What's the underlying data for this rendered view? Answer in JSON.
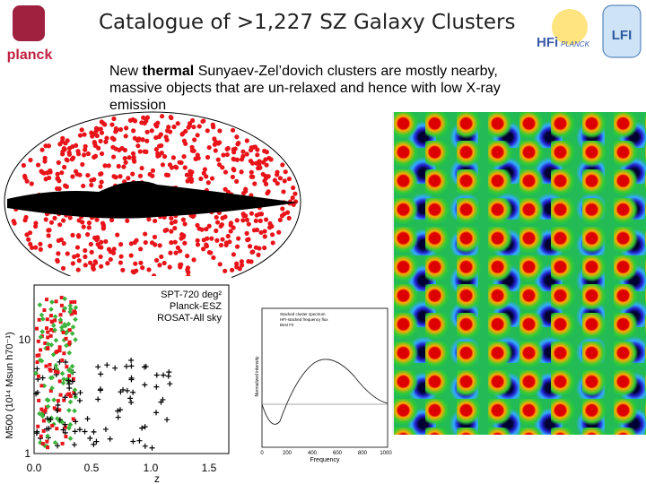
{
  "header": {
    "title": "Catalogue of >1,227 SZ Galaxy Clusters",
    "logo_left": "planck",
    "logo_right_1": "HFi",
    "logo_right_2": "PLANCK",
    "logo_right_3": "LFI"
  },
  "body": {
    "parts": [
      "New ",
      "thermal",
      " Sunyaev-Zel’dovich clusters are mostly nearby, massive objects that are un-relaxed and hence with low X-ray emission"
    ]
  },
  "scatter_figure": {
    "legend": [
      "SPT-720 deg²",
      "Planck-ESZ",
      "ROSAT-All sky"
    ],
    "x_ticks": [
      "0.0",
      "0.5",
      "1.0",
      "1.5"
    ],
    "x_label": "z",
    "y_ticks": [
      "10",
      "1"
    ],
    "y_label": "M500 (10¹⁴ Msun h70⁻¹)"
  },
  "spectrum_figure": {
    "x_ticks": [
      "0",
      "200",
      "400",
      "600",
      "800",
      "1000"
    ],
    "x_label": "Frequency",
    "y_label": "Normalized intensity",
    "legend": [
      "Stacked cluster spectrum",
      "HFI-stacked frequency flux",
      "Best Fit"
    ]
  }
}
